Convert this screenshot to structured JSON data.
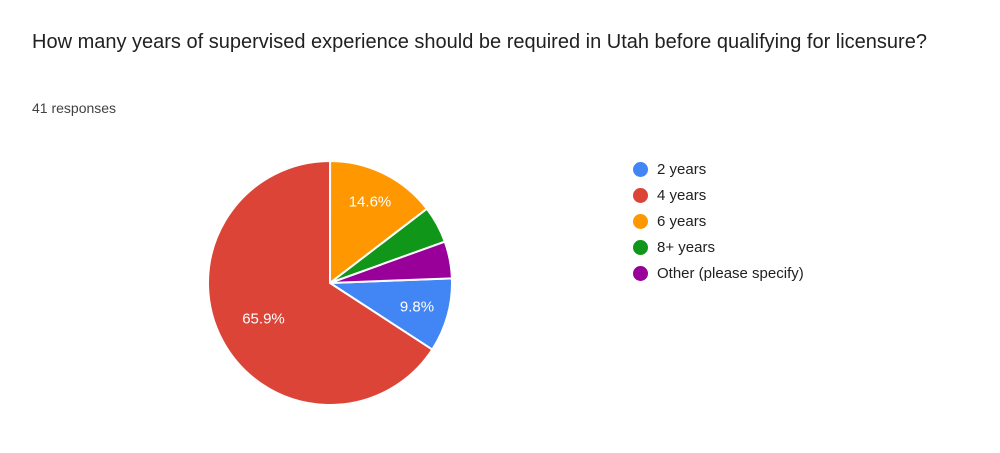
{
  "header": {
    "title": "How many years of supervised experience should be required in Utah before qualifying for licensure?",
    "responses_count": "41 responses"
  },
  "chart_data": {
    "type": "pie",
    "title": "How many years of supervised experience should be required in Utah before qualifying for licensure?",
    "subtitle": "41 responses",
    "legend_position": "right",
    "start_angle_deg_cw_from_top": 87.8,
    "percent_label_color": "#ffffff",
    "slices": [
      {
        "label": "2 years",
        "percent": 9.8,
        "percent_label": "9.8%",
        "color": "#4285F4",
        "show_label": true
      },
      {
        "label": "4 years",
        "percent": 65.9,
        "percent_label": "65.9%",
        "color": "#DB4437",
        "show_label": true
      },
      {
        "label": "6 years",
        "percent": 14.6,
        "percent_label": "14.6%",
        "color": "#FF9800",
        "show_label": true
      },
      {
        "label": "8+ years",
        "percent": 4.9,
        "percent_label": "4.9%",
        "color": "#109618",
        "show_label": false
      },
      {
        "label": "Other (please specify)",
        "percent": 4.9,
        "percent_label": "4.9%",
        "color": "#990099",
        "show_label": false
      }
    ]
  }
}
